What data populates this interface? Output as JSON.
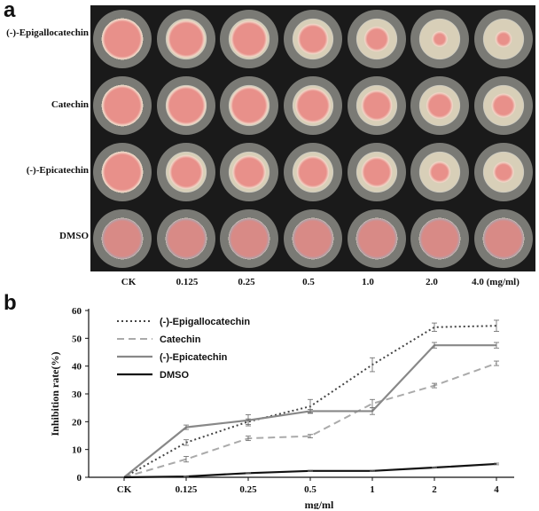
{
  "panel_a": {
    "letter": "a",
    "rows": [
      {
        "label": "(-)-Epigallocatechin",
        "colony_size": [
          0.95,
          0.88,
          0.86,
          0.72,
          0.58,
          0.36,
          0.38
        ]
      },
      {
        "label": "Catechin",
        "colony_size": [
          0.95,
          0.92,
          0.9,
          0.82,
          0.72,
          0.62,
          0.55
        ]
      },
      {
        "label": "(-)-Epicatechin",
        "colony_size": [
          0.95,
          0.8,
          0.78,
          0.76,
          0.72,
          0.5,
          0.48
        ]
      },
      {
        "label": "DMSO",
        "colony_size": [
          0.96,
          0.96,
          0.95,
          0.95,
          0.95,
          0.95,
          0.95
        ]
      }
    ],
    "concentrations": [
      "CK",
      "0.125",
      "0.25",
      "0.5",
      "1.0",
      "2.0",
      "4.0 (mg/ml)"
    ],
    "colors": {
      "colony": "#e8908a",
      "agar": "#d8cfb8",
      "background": "#1a1a1a",
      "rim": "#c9c9c2"
    }
  },
  "panel_b": {
    "letter": "b"
  },
  "chart_data": {
    "type": "line",
    "title": "",
    "categories": [
      "CK",
      "0.125",
      "0.25",
      "0.5",
      "1",
      "2",
      "4"
    ],
    "xlabel": "mg/ml",
    "ylabel": "Inhibition rate(%)",
    "ylim": [
      0,
      60
    ],
    "yticks": [
      0,
      10,
      20,
      30,
      40,
      50,
      60
    ],
    "grid": false,
    "legend_position": "top-left",
    "series": [
      {
        "name": "(-)-Epigallocatechin",
        "style": "dotted",
        "color": "#444444",
        "values": [
          0,
          12.5,
          20,
          25.5,
          40.5,
          54,
          54.5
        ],
        "errors": [
          0,
          1,
          1,
          2.5,
          2.5,
          1.5,
          2
        ]
      },
      {
        "name": "Catechin",
        "style": "dashed",
        "color": "#aaaaaa",
        "values": [
          0,
          6.5,
          14,
          14.8,
          26.5,
          33,
          41
        ],
        "errors": [
          0,
          1,
          0.8,
          0.6,
          1.5,
          0.8,
          0.8
        ]
      },
      {
        "name": "(-)-Epicatechin",
        "style": "solid",
        "color": "#888888",
        "values": [
          0,
          18,
          20.5,
          23.8,
          23.8,
          47.5,
          47.5
        ],
        "errors": [
          0,
          0.8,
          2,
          0.6,
          1.2,
          1,
          1
        ]
      },
      {
        "name": "DMSO",
        "style": "solid",
        "color": "#111111",
        "values": [
          0,
          0.3,
          1.5,
          2.3,
          2.3,
          3.5,
          4.8
        ],
        "errors": [
          0,
          0.1,
          0.2,
          0.2,
          0.2,
          0.2,
          0.3
        ]
      }
    ]
  }
}
